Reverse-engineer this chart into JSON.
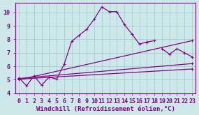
{
  "background_color": "#cce8e8",
  "grid_color": "#aacccc",
  "line_color": "#880088",
  "marker": "+",
  "markersize": 3,
  "linewidth": 0.9,
  "xlabel": "Windchill (Refroidissement éolien,°C)",
  "xlabel_fontsize": 6.5,
  "tick_fontsize": 6,
  "xlim": [
    -0.5,
    23.5
  ],
  "ylim": [
    4.0,
    10.7
  ],
  "yticks": [
    4,
    5,
    6,
    7,
    8,
    9,
    10
  ],
  "xticks": [
    0,
    1,
    2,
    3,
    4,
    5,
    6,
    7,
    8,
    9,
    10,
    11,
    12,
    13,
    14,
    15,
    16,
    17,
    18,
    19,
    20,
    21,
    22,
    23
  ],
  "lines": [
    {
      "x": [
        0,
        1,
        2,
        3,
        4,
        5,
        6,
        7,
        8,
        9,
        10,
        11,
        12,
        13,
        14,
        15,
        16,
        17,
        18,
        19,
        20,
        21,
        22,
        23
      ],
      "y": [
        5.15,
        4.55,
        5.3,
        4.6,
        5.2,
        5.05,
        6.15,
        7.85,
        8.3,
        8.75,
        9.5,
        10.4,
        10.05,
        10.05,
        9.1,
        8.4,
        7.65,
        7.8,
        7.9,
        null,
        null,
        null,
        null,
        null
      ]
    },
    {
      "x": [
        0,
        1,
        2,
        3,
        4,
        5,
        6,
        7,
        8,
        9,
        10,
        11,
        12,
        13,
        14,
        15,
        16,
        17,
        18,
        19,
        20,
        21,
        22,
        23
      ],
      "y": [
        null,
        null,
        null,
        null,
        null,
        null,
        null,
        null,
        null,
        null,
        null,
        null,
        null,
        null,
        null,
        null,
        null,
        7.75,
        null,
        7.3,
        6.9,
        7.3,
        7.0,
        6.7
      ]
    },
    {
      "x": [
        0,
        23
      ],
      "y": [
        5.1,
        6.2
      ]
    },
    {
      "x": [
        0,
        23
      ],
      "y": [
        5.05,
        5.8
      ]
    },
    {
      "x": [
        0,
        23
      ],
      "y": [
        5.0,
        7.9
      ]
    }
  ]
}
